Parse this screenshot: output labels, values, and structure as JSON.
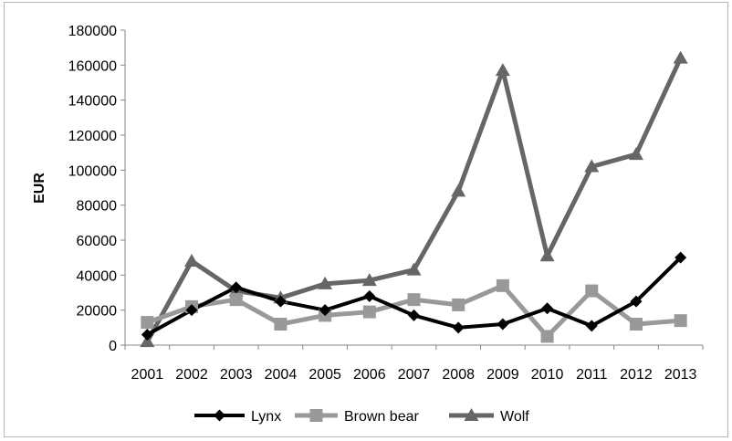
{
  "chart_data": {
    "type": "line",
    "title": "",
    "xlabel": "",
    "ylabel": "EUR",
    "ylim": [
      0,
      180000
    ],
    "ytick_step": 20000,
    "yticks": [
      "0",
      "20000",
      "40000",
      "60000",
      "80000",
      "100000",
      "120000",
      "140000",
      "160000",
      "180000"
    ],
    "grid": false,
    "legend_position": "bottom",
    "categories": [
      "2001",
      "2002",
      "2003",
      "2004",
      "2005",
      "2006",
      "2007",
      "2008",
      "2009",
      "2010",
      "2011",
      "2012",
      "2013"
    ],
    "series": [
      {
        "name": "Lynx",
        "marker": "diamond",
        "color": "#000000",
        "values": [
          6000,
          20000,
          33000,
          25000,
          20000,
          28000,
          17000,
          10000,
          12000,
          21000,
          11000,
          25000,
          50000
        ]
      },
      {
        "name": "Brown bear",
        "marker": "square",
        "color": "#999999",
        "values": [
          13000,
          22000,
          26000,
          12000,
          17000,
          19000,
          26000,
          23000,
          34000,
          5000,
          31000,
          12000,
          14000
        ]
      },
      {
        "name": "Wolf",
        "marker": "triangle",
        "color": "#666666",
        "values": [
          2000,
          48000,
          31000,
          27000,
          35000,
          37000,
          43000,
          88000,
          157000,
          51000,
          102000,
          109000,
          164000
        ]
      }
    ]
  }
}
